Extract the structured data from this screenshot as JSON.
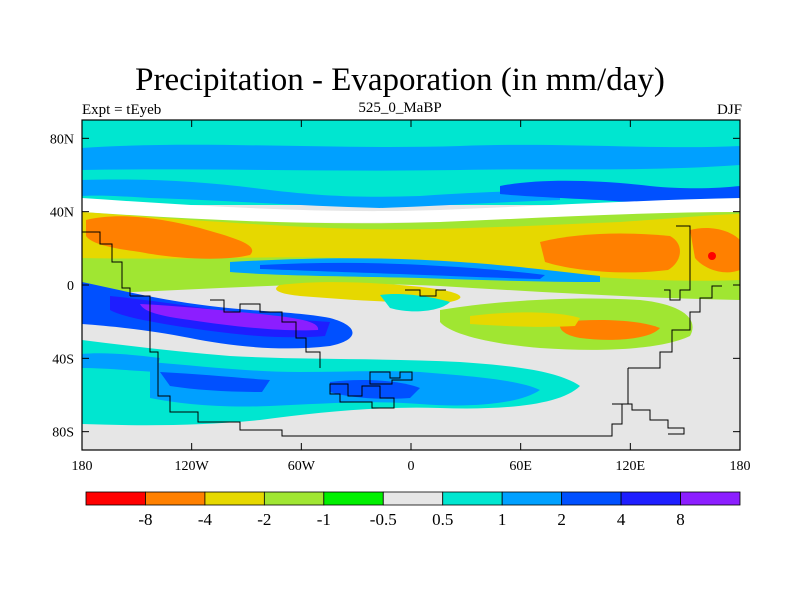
{
  "title": "Precipitation - Evaporation (in mm/day)",
  "subtitle_left": "Expt = tEyeb",
  "subtitle_center": "525_0_MaBP",
  "subtitle_right": "DJF",
  "map": {
    "lon_range": [
      -180,
      180
    ],
    "lat_range": [
      -90,
      90
    ],
    "x_ticks": [
      {
        "value": -180,
        "label": "180"
      },
      {
        "value": -120,
        "label": "120W"
      },
      {
        "value": -60,
        "label": "60W"
      },
      {
        "value": 0,
        "label": "0"
      },
      {
        "value": 60,
        "label": "60E"
      },
      {
        "value": 120,
        "label": "120E"
      },
      {
        "value": 180,
        "label": "180"
      }
    ],
    "y_ticks": [
      {
        "value": 80,
        "label": "80N"
      },
      {
        "value": 40,
        "label": "40N"
      },
      {
        "value": 0,
        "label": "0"
      },
      {
        "value": -40,
        "label": "40S"
      },
      {
        "value": -80,
        "label": "80S"
      }
    ]
  },
  "colorbar": {
    "colors": [
      "#ff0000",
      "#ff8000",
      "#e6d800",
      "#a0e632",
      "#00f000",
      "#e6e6e6",
      "#00e6d0",
      "#00a0ff",
      "#0050ff",
      "#1e1eff",
      "#8c1eff"
    ],
    "labels": [
      "-8",
      "-4",
      "-2",
      "-1",
      "-0.5",
      "0.5",
      "1",
      "2",
      "4",
      "8"
    ]
  }
}
